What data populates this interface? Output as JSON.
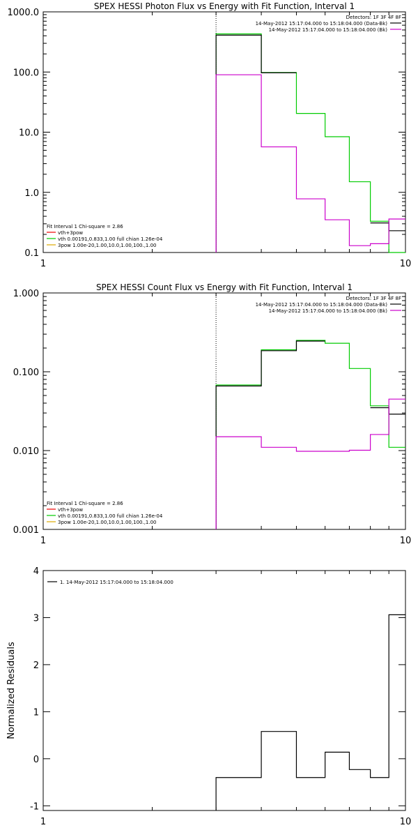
{
  "chart_data": [
    {
      "type": "line",
      "title": "SPEX HESSI Photon Flux vs Energy with Fit Function, Interval 1",
      "xlabel": "",
      "ylabel": "",
      "xscale": "log",
      "yscale": "log",
      "xlim": [
        1,
        10
      ],
      "ylim": [
        0.1,
        1000
      ],
      "x_ticks": [
        "1",
        "10"
      ],
      "y_ticks": [
        "0.1",
        "1.0",
        "10.0",
        "100.0",
        "1000.0"
      ],
      "y_tick_values": [
        0.1,
        1,
        10,
        100,
        1000
      ],
      "vline_x": 3,
      "legend_topright": [
        "Detectors: 1F 3F 4F 8F",
        "14-May-2012 15:17:04.000 to 15:18:04.000 (Data-Bk)",
        "14-May-2012 15:17:04.000 to 15:18:04.000 (Bk)"
      ],
      "legend_topright_colors": [
        "",
        "#000000",
        "#cc00cc"
      ],
      "legend_bottomleft": [
        "Fit Interval 1   Chi-square = 2.86",
        "vth+3pow",
        "vth 0.00191,0.833,1.00  full chian 1.26e-04",
        "3pow 1.00e-20,1.00,10.0,1.00,100.,1.00"
      ],
      "legend_bottomleft_colors": [
        "",
        "#ee0000",
        "#00cc00",
        "#ddaa00"
      ],
      "bin_edges": [
        3.0,
        4.0,
        5.0,
        6.0,
        7.0,
        8.0,
        9.0,
        10.0
      ],
      "series": [
        {
          "color": "#00cc00",
          "values": [
            430,
            98,
            20.5,
            8.4,
            1.5,
            0.33,
            0.1
          ]
        },
        {
          "color": "#000000",
          "values": [
            410,
            97,
            null,
            null,
            null,
            0.31,
            0.23
          ]
        },
        {
          "color": "#cc00cc",
          "values": [
            90,
            5.7,
            0.78,
            0.35,
            0.13,
            0.14,
            0.36
          ]
        }
      ]
    },
    {
      "type": "line",
      "title": "SPEX HESSI Count Flux vs Energy with Fit Function, Interval 1",
      "xlabel": "",
      "ylabel": "",
      "xscale": "log",
      "yscale": "log",
      "xlim": [
        1,
        10
      ],
      "ylim": [
        0.001,
        1
      ],
      "x_ticks": [
        "1",
        "10"
      ],
      "y_ticks": [
        "0.001",
        "0.010",
        "0.100",
        "1.000"
      ],
      "y_tick_values": [
        0.001,
        0.01,
        0.1,
        1
      ],
      "vline_x": 3,
      "legend_topright": [
        "Detectors: 1F 3F 4F 8F",
        "14-May-2012 15:17:04.000 to 15:18:04.000 (Data-Bk)",
        "14-May-2012 15:17:04.000 to 15:18:04.000 (Bk)"
      ],
      "legend_topright_colors": [
        "",
        "#000000",
        "#cc00cc"
      ],
      "legend_bottomleft": [
        "Fit Interval 1   Chi-square = 2.86",
        "vth+3pow",
        "vth 0.00191,0.833,1.00  full chian 1.26e-04",
        "3pow 1.00e-20,1.00,10.0,1.00,100.,1.00"
      ],
      "legend_bottomleft_colors": [
        "",
        "#ee0000",
        "#00cc00",
        "#ddaa00"
      ],
      "bin_edges": [
        3.0,
        4.0,
        5.0,
        6.0,
        7.0,
        8.0,
        9.0,
        10.0
      ],
      "series": [
        {
          "color": "#00cc00",
          "values": [
            0.068,
            0.19,
            0.25,
            0.23,
            0.11,
            0.037,
            0.011
          ]
        },
        {
          "color": "#000000",
          "values": [
            0.066,
            0.185,
            0.245,
            null,
            null,
            0.035,
            0.029
          ]
        },
        {
          "color": "#cc00cc",
          "values": [
            0.015,
            0.011,
            0.0098,
            0.0098,
            0.0101,
            0.016,
            0.045
          ]
        }
      ]
    },
    {
      "type": "line",
      "title": "",
      "xlabel": "",
      "ylabel": "Normalized Residuals",
      "xscale": "log",
      "yscale": "linear",
      "xlim": [
        1,
        10
      ],
      "ylim": [
        -1.1,
        4
      ],
      "x_ticks": [
        "1",
        "10"
      ],
      "y_ticks": [
        "-1",
        "0",
        "1",
        "2",
        "3",
        "4"
      ],
      "y_tick_values": [
        -1,
        0,
        1,
        2,
        3,
        4
      ],
      "legend_topleft": [
        "1. 14-May-2012 15:17:04.000 to 15:18:04.000"
      ],
      "bin_edges": [
        3.0,
        4.0,
        5.0,
        6.0,
        7.0,
        8.0,
        9.0,
        10.0
      ],
      "series": [
        {
          "color": "#000000",
          "values": [
            -0.4,
            0.58,
            -0.4,
            0.14,
            -0.23,
            -0.4,
            3.06
          ]
        }
      ]
    }
  ]
}
